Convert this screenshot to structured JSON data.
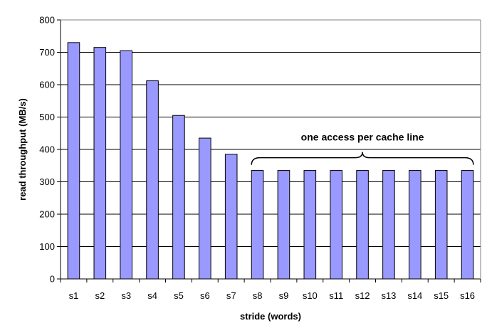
{
  "chart_data": {
    "type": "bar",
    "title": "",
    "xlabel": "stride (words)",
    "ylabel": "read throughput (MB/s)",
    "ylim": [
      0,
      800
    ],
    "yticks": [
      0,
      100,
      200,
      300,
      400,
      500,
      600,
      700,
      800
    ],
    "grid": true,
    "categories": [
      "s1",
      "s2",
      "s3",
      "s4",
      "s5",
      "s6",
      "s7",
      "s8",
      "s9",
      "s10",
      "s11",
      "s12",
      "s13",
      "s14",
      "s15",
      "s16"
    ],
    "values": [
      730,
      715,
      705,
      612,
      505,
      435,
      385,
      335,
      335,
      335,
      335,
      335,
      335,
      335,
      335,
      335
    ],
    "bar_color": "#9999FF",
    "annotation": {
      "text": "one access per cache line",
      "from_category": "s8",
      "to_category": "s16"
    }
  }
}
